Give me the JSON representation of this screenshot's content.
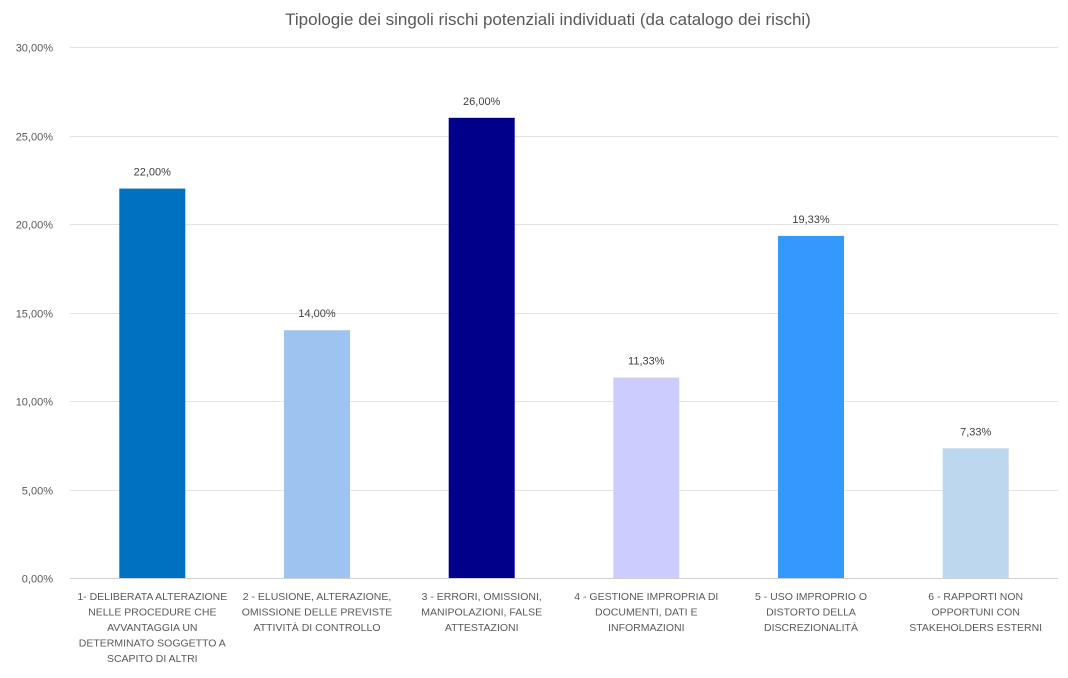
{
  "chart_data": {
    "type": "bar",
    "title": "Tipologie dei singoli rischi potenziali individuati (da catalogo dei rischi)",
    "xlabel": "",
    "ylabel": "",
    "ylim": [
      0,
      30
    ],
    "y_ticks": [
      0,
      5,
      10,
      15,
      20,
      25,
      30
    ],
    "y_tick_labels": [
      "0,00%",
      "5,00%",
      "10,00%",
      "15,00%",
      "20,00%",
      "25,00%",
      "30,00%"
    ],
    "grid": true,
    "legend": "none",
    "categories": [
      [
        "1- DELIBERATA ALTERAZIONE",
        "NELLE PROCEDURE CHE",
        "AVVANTAGGIA UN",
        "DETERMINATO SOGGETTO A",
        "SCAPITO DI ALTRI"
      ],
      [
        "2 - ELUSIONE, ALTERAZIONE,",
        "OMISSIONE DELLE PREVISTE",
        "ATTIVITÀ DI CONTROLLO"
      ],
      [
        "3 - ERRORI, OMISSIONI,",
        "MANIPOLAZIONI, FALSE",
        "ATTESTAZIONI"
      ],
      [
        "4 - GESTIONE IMPROPRIA DI",
        "DOCUMENTI, DATI E",
        "INFORMAZIONI"
      ],
      [
        "5 - USO IMPROPRIO O",
        "DISTORTO DELLA",
        "DISCREZIONALITÀ"
      ],
      [
        "6 - RAPPORTI NON",
        "OPPORTUNI CON",
        "STAKEHOLDERS ESTERNI"
      ]
    ],
    "values": [
      22.0,
      14.0,
      26.0,
      11.33,
      19.33,
      7.33
    ],
    "value_labels": [
      "22,00%",
      "14,00%",
      "26,00%",
      "11,33%",
      "19,33%",
      "7,33%"
    ],
    "colors": [
      "#0070C0",
      "#9DC3F0",
      "#00008B",
      "#CCCCFF",
      "#3399FF",
      "#BDD7EE"
    ]
  }
}
